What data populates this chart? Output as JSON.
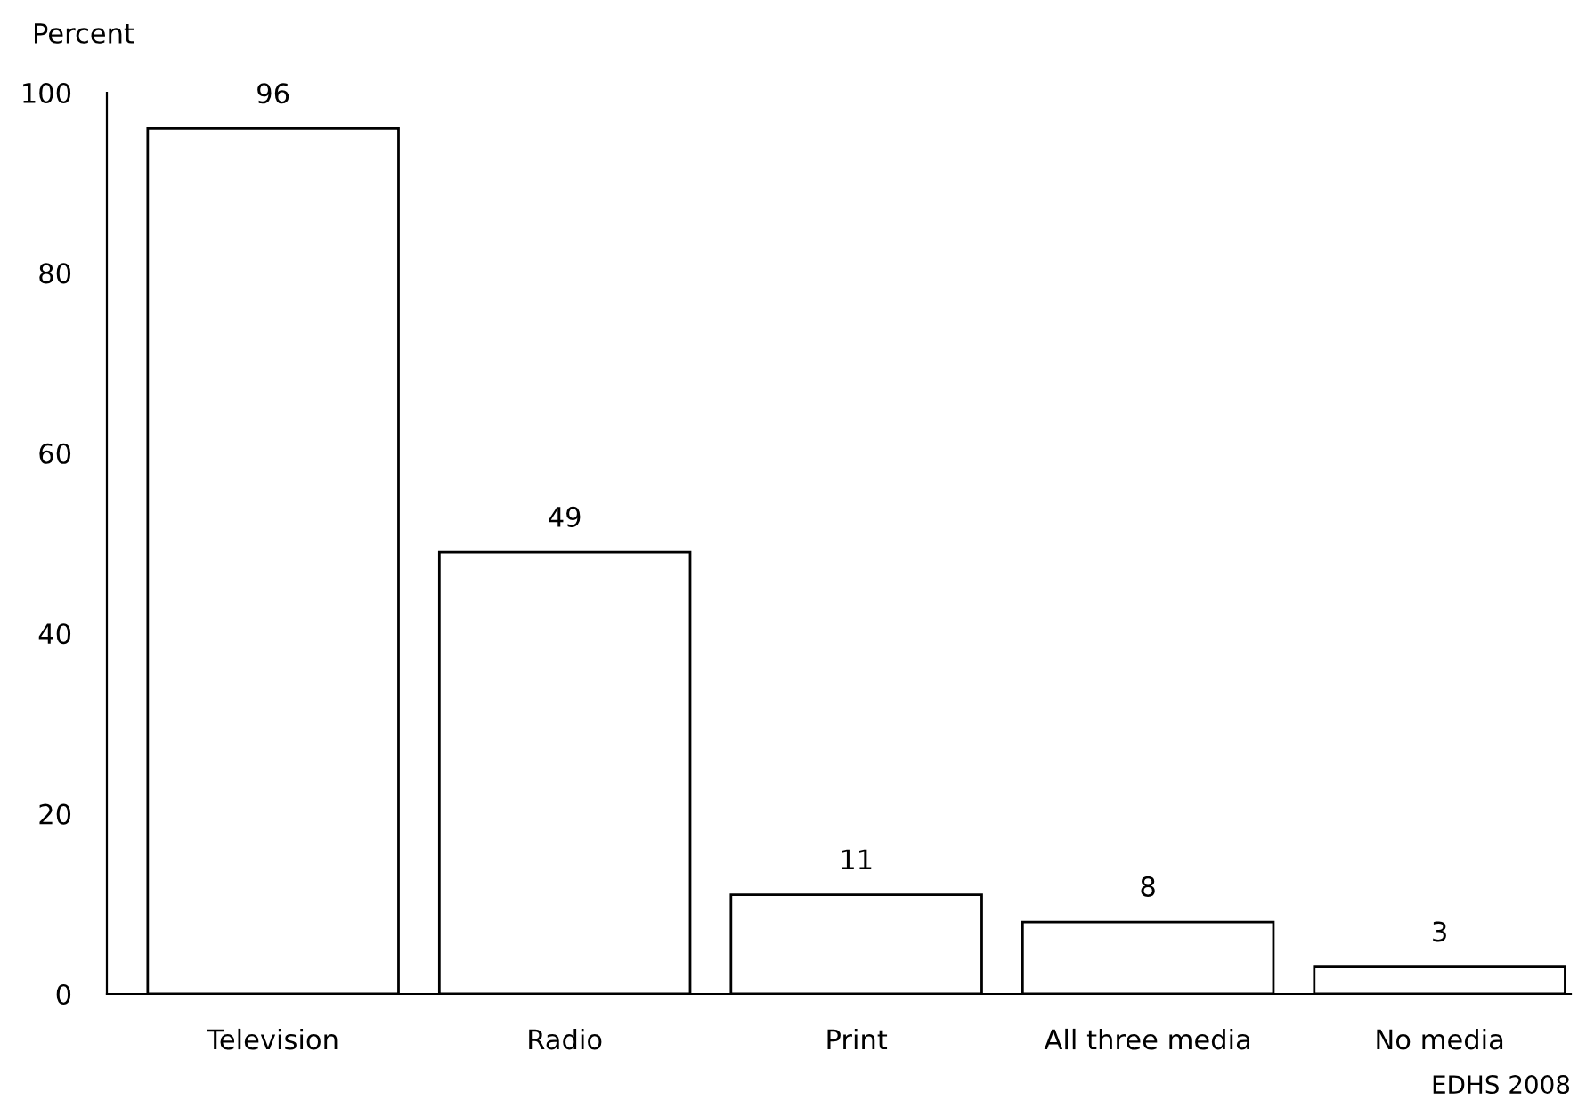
{
  "chart_data": {
    "type": "bar",
    "ylabel": "Percent",
    "categories": [
      "Television",
      "Radio",
      "Print",
      "All three media",
      "No media"
    ],
    "values": [
      96,
      49,
      11,
      8,
      3
    ],
    "color": "#ffffff",
    "ylim": [
      0,
      100
    ],
    "yticks": [
      0,
      20,
      40,
      60,
      80,
      100
    ],
    "data_labels": true,
    "grid": false,
    "legend": false,
    "annotations": [
      "EDHS 2008"
    ]
  }
}
